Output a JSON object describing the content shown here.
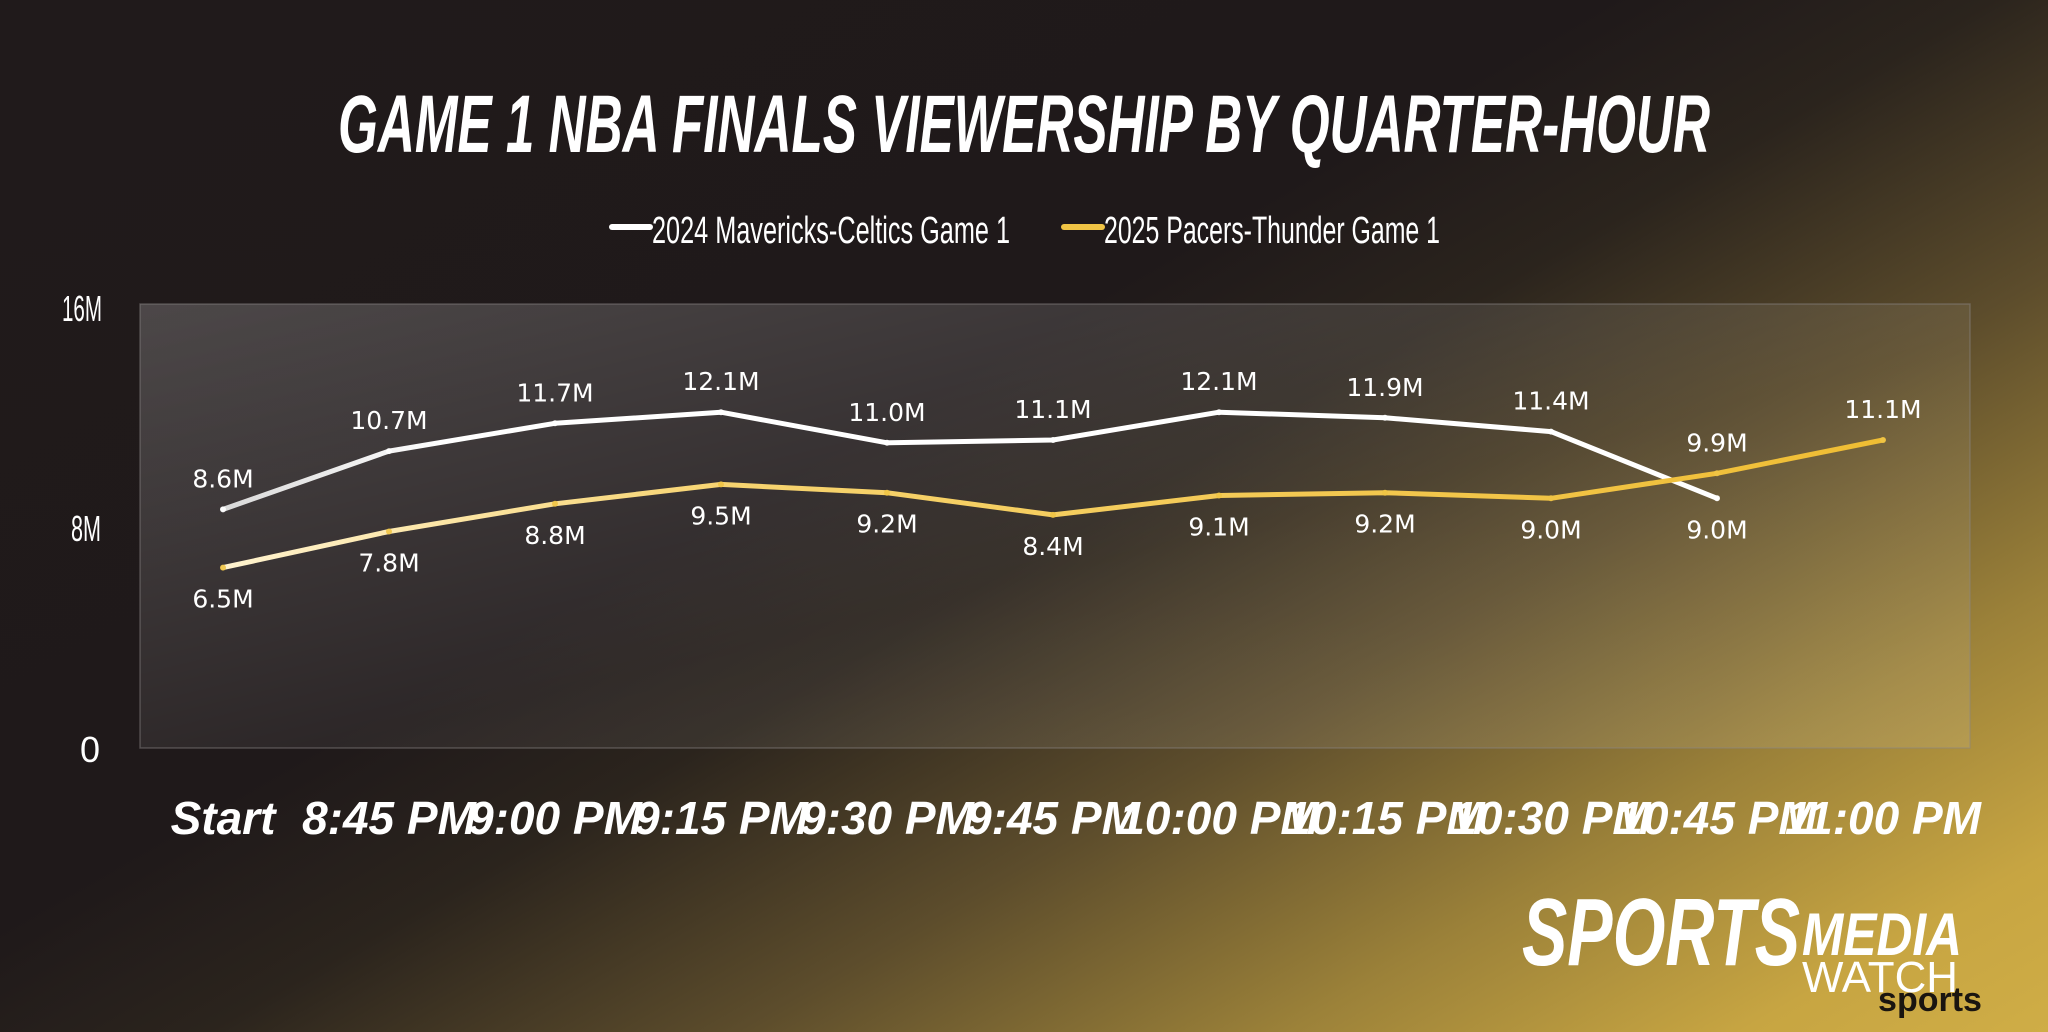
{
  "chart_data": {
    "type": "line",
    "title": "GAME 1 NBA FINALS VIEWERSHIP BY QUARTER-HOUR",
    "x": [
      "Start",
      "8:45 PM",
      "9:00 PM",
      "9:15 PM",
      "9:30 PM",
      "9:45 PM",
      "10:00 PM",
      "10:15 PM",
      "10:30 PM",
      "10:45 PM",
      "11:00 PM"
    ],
    "ylim": [
      0,
      16
    ],
    "yticks": [
      "0",
      "8M",
      "16M"
    ],
    "grid": false,
    "legend": "top-center",
    "series": [
      {
        "name": "2024 Mavericks-Celtics Game 1",
        "color": "#ffffff",
        "values": [
          8.6,
          10.7,
          11.7,
          12.1,
          11.0,
          11.1,
          12.1,
          11.9,
          11.4,
          9.0,
          null
        ],
        "labels": [
          "8.6M",
          "10.7M",
          "11.7M",
          "12.1M",
          "11.0M",
          "11.1M",
          "12.1M",
          "11.9M",
          "11.4M",
          "9.0M",
          null
        ]
      },
      {
        "name": "2025 Pacers-Thunder Game 1",
        "color": "#f0c445",
        "values": [
          6.5,
          7.8,
          8.8,
          9.5,
          9.2,
          8.4,
          9.1,
          9.2,
          9.0,
          9.9,
          11.1
        ],
        "labels": [
          "6.5M",
          "7.8M",
          "8.8M",
          "9.5M",
          "9.2M",
          "8.4M",
          "9.1M",
          "9.2M",
          "9.0M",
          "9.9M",
          "11.1M"
        ]
      }
    ]
  },
  "branding": {
    "logo_main": "SPORTS",
    "logo_media": "MEDIA",
    "logo_watch": "WATCH",
    "corner_mark": "sports"
  }
}
